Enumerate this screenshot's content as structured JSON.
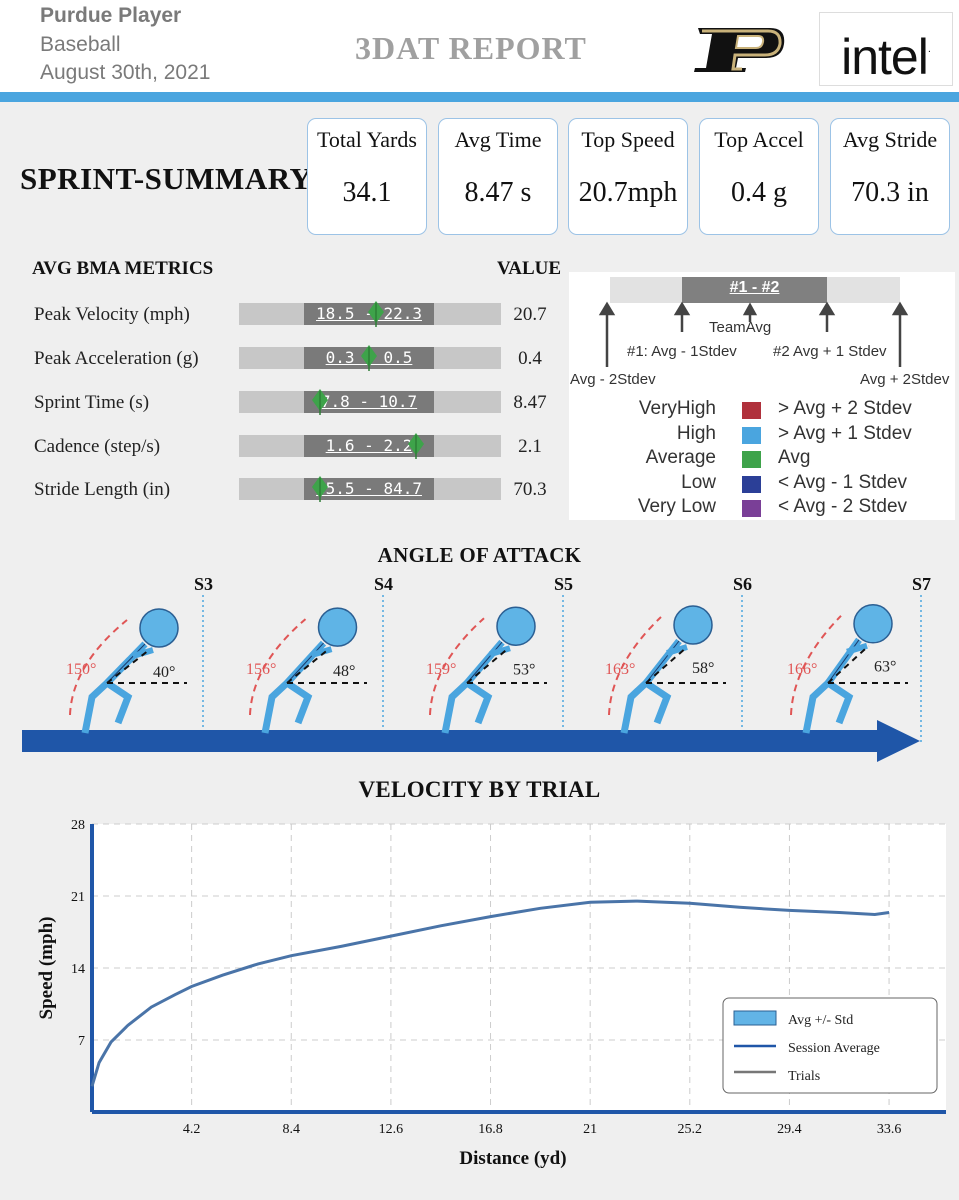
{
  "header": {
    "player": "Purdue Player",
    "sport": "Baseball",
    "date": "August 30th, 2021",
    "title": "3DAT REPORT",
    "logo_text": "intel",
    "logo_mark": "."
  },
  "summary": {
    "title": "SPRINT-SUMMARY",
    "cards": [
      {
        "label": "Total Yards",
        "value": "34.1"
      },
      {
        "label": "Avg Time",
        "value": "8.47 s"
      },
      {
        "label": "Top Speed",
        "value": "20.7mph"
      },
      {
        "label": "Top Accel",
        "value": "0.4 g"
      },
      {
        "label": "Avg Stride",
        "value": "70.3 in"
      }
    ]
  },
  "bma": {
    "heading": "AVG BMA METRICS",
    "value_heading": "VALUE",
    "rows": [
      {
        "label": "Peak Velocity (mph)",
        "range": "18.5 - 22.3",
        "value": "20.7",
        "marker_frac": 0.55
      },
      {
        "label": "Peak Acceleration (g)",
        "range": "0.3 - 0.5",
        "value": "0.4",
        "marker_frac": 0.5
      },
      {
        "label": "Sprint Time (s)",
        "range": "7.8 - 10.7",
        "value": "8.47",
        "marker_frac": 0.12
      },
      {
        "label": "Cadence (step/s)",
        "range": "1.6 - 2.2",
        "value": "2.1",
        "marker_frac": 0.86
      },
      {
        "label": "Stride Length (in)",
        "range": "65.5 - 84.7",
        "value": "70.3",
        "marker_frac": 0.12
      }
    ]
  },
  "legend": {
    "band_label": "#1 - #2",
    "team_avg": "TeamAvg",
    "minus1": "#1: Avg - 1Stdev",
    "plus1": "#2 Avg + 1 Stdev",
    "minus2": "Avg - 2Stdev",
    "plus2": "Avg + 2Stdev",
    "items": [
      {
        "label": "VeryHigh",
        "color": "#b0313c",
        "desc": "> Avg + 2 Stdev"
      },
      {
        "label": "High",
        "color": "#4aa5df",
        "desc": "> Avg + 1 Stdev"
      },
      {
        "label": "Average",
        "color": "#3ea34a",
        "desc": "Avg"
      },
      {
        "label": "Low",
        "color": "#2b3f97",
        "desc": "< Avg - 1 Stdev"
      },
      {
        "label": "Very Low",
        "color": "#7a3f97",
        "desc": "< Avg - 2 Stdev"
      }
    ]
  },
  "attack": {
    "title": "ANGLE OF ATTACK",
    "sections": [
      "S3",
      "S4",
      "S5",
      "S6",
      "S7"
    ],
    "figures": [
      {
        "back_angle": "150°",
        "attack_angle": "40°"
      },
      {
        "back_angle": "156°",
        "attack_angle": "48°"
      },
      {
        "back_angle": "159°",
        "attack_angle": "53°"
      },
      {
        "back_angle": "163°",
        "attack_angle": "58°"
      },
      {
        "back_angle": "166°",
        "attack_angle": "63°"
      }
    ]
  },
  "colors": {
    "accent_blue": "#4aa5df",
    "arrow_blue": "#1f56a8",
    "curve_blue": "#4a74a8",
    "angle_red": "#e05555",
    "marker_green": "#3ea34a"
  },
  "chart_data": {
    "type": "line",
    "title": "VELOCITY BY TRIAL",
    "xlabel": "Distance (yd)",
    "ylabel": "Speed (mph)",
    "xlim": [
      0,
      36
    ],
    "ylim": [
      0,
      28
    ],
    "x_ticks": [
      "4.2",
      "8.4",
      "12.6",
      "16.8",
      "21",
      "25.2",
      "29.4",
      "33.6"
    ],
    "y_ticks": [
      "7",
      "14",
      "21",
      "28"
    ],
    "grid": true,
    "legend_position": "bottom-right",
    "legend": [
      "Avg +/- Std",
      "Session Average",
      "Trials"
    ],
    "series": [
      {
        "name": "Session Average",
        "x": [
          0,
          0.3,
          0.8,
          1.5,
          2.5,
          3.5,
          4.2,
          5.5,
          7,
          8.4,
          10.5,
          12.6,
          14.7,
          16.8,
          18.9,
          21,
          23,
          25.2,
          27.3,
          29.4,
          31.5,
          33,
          33.6
        ],
        "y": [
          2.5,
          4.8,
          6.8,
          8.4,
          10.2,
          11.4,
          12.2,
          13.3,
          14.4,
          15.2,
          16.1,
          17.1,
          18.1,
          19.0,
          19.8,
          20.4,
          20.5,
          20.3,
          19.9,
          19.6,
          19.4,
          19.2,
          19.4
        ]
      }
    ]
  }
}
